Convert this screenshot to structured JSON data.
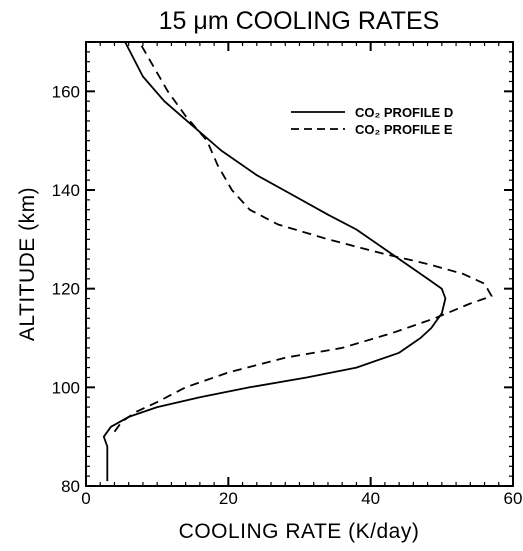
{
  "chart_data": {
    "type": "line",
    "title": "15 μm COOLING RATES",
    "xlabel": "COOLING RATE (K/day)",
    "ylabel": "ALTITUDE (km)",
    "xlim": [
      0,
      60
    ],
    "ylim": [
      80,
      170
    ],
    "xticks": [
      0,
      20,
      40,
      60
    ],
    "yticks": [
      80,
      100,
      120,
      140,
      160
    ],
    "grid": false,
    "legend_position": "top-right",
    "series": [
      {
        "name": "CO₂ PROFILE D",
        "style": "solid",
        "color": "#000000",
        "points": [
          [
            3,
            81
          ],
          [
            3,
            84
          ],
          [
            3,
            88
          ],
          [
            2.5,
            90
          ],
          [
            3.5,
            92
          ],
          [
            6,
            94
          ],
          [
            10,
            96
          ],
          [
            16,
            98
          ],
          [
            23,
            100
          ],
          [
            31,
            102
          ],
          [
            38,
            104
          ],
          [
            44,
            107
          ],
          [
            47,
            110
          ],
          [
            48.5,
            112
          ],
          [
            50,
            115
          ],
          [
            50.5,
            118
          ],
          [
            50,
            120
          ],
          [
            48,
            122
          ],
          [
            45,
            125
          ],
          [
            42,
            128
          ],
          [
            38,
            132
          ],
          [
            34,
            135
          ],
          [
            29,
            139
          ],
          [
            24,
            143
          ],
          [
            19,
            148
          ],
          [
            15,
            153
          ],
          [
            11,
            158
          ],
          [
            8,
            163
          ],
          [
            5.5,
            170
          ]
        ]
      },
      {
        "name": "CO₂ PROFILE E",
        "style": "dashed",
        "color": "#000000",
        "points": [
          [
            4,
            91
          ],
          [
            5,
            93
          ],
          [
            7,
            95
          ],
          [
            10,
            97
          ],
          [
            14,
            100
          ],
          [
            20,
            103
          ],
          [
            28,
            106
          ],
          [
            36,
            108
          ],
          [
            43,
            111
          ],
          [
            49,
            114
          ],
          [
            54,
            117
          ],
          [
            57,
            118.5
          ],
          [
            56,
            121
          ],
          [
            53,
            123
          ],
          [
            48,
            125
          ],
          [
            42,
            127
          ],
          [
            34,
            130
          ],
          [
            27,
            133
          ],
          [
            23,
            136
          ],
          [
            20.5,
            140
          ],
          [
            18.5,
            145
          ],
          [
            17,
            150
          ],
          [
            14,
            155
          ],
          [
            11.5,
            160
          ],
          [
            9.5,
            165
          ],
          [
            7.5,
            170
          ]
        ]
      }
    ]
  }
}
